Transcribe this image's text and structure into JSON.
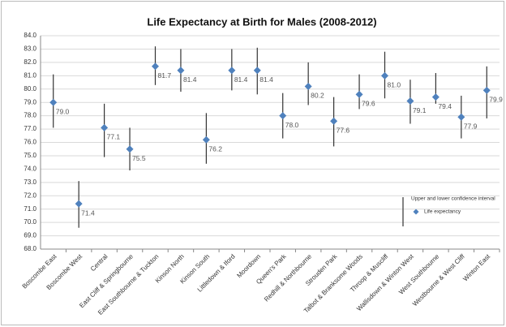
{
  "chart_data": {
    "type": "errorbar",
    "title": "Life Expectancy at Birth for Males (2008-2012)",
    "categories": [
      "Boscombe East",
      "Boscombe West",
      "Central",
      "East Cliff & Springbourne",
      "East Southbourne & Tuckton",
      "Kinson North",
      "Kinson South",
      "Littledown & Iford",
      "Moordown",
      "Queen's Park",
      "Redhill & Northbourne",
      "Strouden Park",
      "Talbot & Branksome Woods",
      "Throop & Muscliff",
      "Wallisdown & Winton West",
      "West Southbourne",
      "Westbourne & West Cliff",
      "Winton East"
    ],
    "series": [
      {
        "name": "Life expectancy",
        "color": "#4f81bd",
        "values": [
          79.0,
          71.4,
          77.1,
          75.5,
          81.7,
          81.4,
          76.2,
          81.4,
          81.4,
          78.0,
          80.2,
          77.6,
          79.6,
          81.0,
          79.1,
          79.4,
          77.9,
          79.9
        ],
        "value_labels": [
          "79.0",
          "71.4",
          "77.1",
          "75.5",
          "81.7",
          "81.4",
          "76.2",
          "81.4",
          "81.4",
          "78.0",
          "80.2",
          "77.6",
          "79.6",
          "81.0",
          "79.1",
          "79.4",
          "77.9",
          "79.9"
        ]
      }
    ],
    "interval": {
      "name": "Upper and lower confidence interval",
      "color": "#333333",
      "lower": [
        77.1,
        69.6,
        74.9,
        73.9,
        80.3,
        79.8,
        74.4,
        79.9,
        79.6,
        76.3,
        78.8,
        75.7,
        78.5,
        79.3,
        77.4,
        78.9,
        76.3,
        77.8
      ],
      "upper": [
        81.1,
        73.1,
        78.9,
        77.1,
        83.2,
        83.0,
        78.2,
        83.0,
        83.1,
        79.7,
        82.0,
        79.4,
        81.1,
        82.8,
        80.7,
        81.2,
        79.5,
        81.7
      ]
    },
    "ylim": [
      68,
      84
    ],
    "yticks": [
      {
        "value": 68,
        "label": "68.0"
      },
      {
        "value": 69,
        "label": "69.0"
      },
      {
        "value": 70,
        "label": "70.0"
      },
      {
        "value": 71,
        "label": "71.0"
      },
      {
        "value": 72,
        "label": "72.0"
      },
      {
        "value": 73,
        "label": "73.0"
      },
      {
        "value": 74,
        "label": "74.0"
      },
      {
        "value": 75,
        "label": "75.0"
      },
      {
        "value": 76,
        "label": "76.0"
      },
      {
        "value": 77,
        "label": "77.0"
      },
      {
        "value": 78,
        "label": "78.0"
      },
      {
        "value": 79,
        "label": "79.0"
      },
      {
        "value": 80,
        "label": "80.0"
      },
      {
        "value": 81,
        "label": "81.0"
      },
      {
        "value": 82,
        "label": "82.0"
      },
      {
        "value": 83,
        "label": "83.0"
      },
      {
        "value": 84,
        "label": "84.0"
      }
    ],
    "grid": true,
    "legend": "right"
  }
}
